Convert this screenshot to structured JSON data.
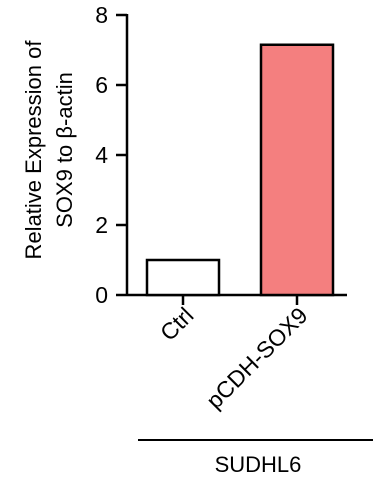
{
  "chart_data": {
    "type": "bar",
    "categories": [
      "Ctrl",
      "pCDH-SOX9"
    ],
    "values": [
      1.0,
      7.15
    ],
    "bar_colors": [
      "#ffffff",
      "#f47f7f"
    ],
    "bar_stroke": "#000000",
    "ylabel_lines": [
      "Relative Expression of",
      "SOX9 to β-actin"
    ],
    "ylim": [
      0,
      8
    ],
    "yticks": [
      "0",
      "2",
      "4",
      "6",
      "8"
    ],
    "group_label": "SUDHL6",
    "grid": false,
    "legend": "none"
  }
}
